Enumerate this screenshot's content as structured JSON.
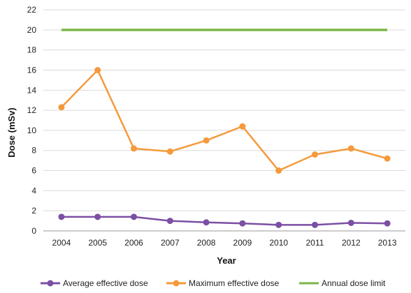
{
  "chart_data": {
    "type": "line",
    "xlabel": "Year",
    "ylabel": "Dose (mSv)",
    "x": [
      "2004",
      "2005",
      "2006",
      "2007",
      "2008",
      "2009",
      "2010",
      "2011",
      "2012",
      "2013"
    ],
    "ylim": [
      0,
      22
    ],
    "yticks": [
      0,
      2,
      4,
      6,
      8,
      10,
      12,
      14,
      16,
      18,
      20,
      22
    ],
    "grid": true,
    "legend_position": "bottom",
    "series": [
      {
        "name": "Average effective dose",
        "color": "#7b4fa3",
        "marker": "circle",
        "values": [
          1.4,
          1.4,
          1.4,
          1.0,
          0.85,
          0.75,
          0.6,
          0.6,
          0.8,
          0.75
        ]
      },
      {
        "name": "Maximum effective dose",
        "color": "#f59a3c",
        "marker": "circle",
        "values": [
          12.3,
          16.0,
          8.2,
          7.9,
          9.0,
          10.4,
          6.0,
          7.6,
          8.2,
          7.2
        ]
      },
      {
        "name": "Annual dose limit",
        "color": "#7ab648",
        "marker": "none",
        "values": [
          20,
          20,
          20,
          20,
          20,
          20,
          20,
          20,
          20,
          20
        ]
      }
    ]
  }
}
